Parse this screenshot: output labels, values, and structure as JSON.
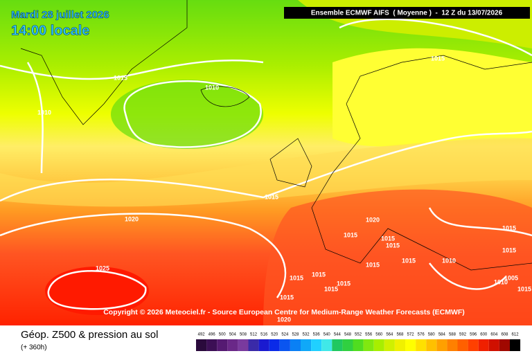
{
  "header": {
    "date": "Mardi 28 juillet 2026",
    "time": "14:00 locale",
    "run": "Ensemble ECMWF AIFS  ( Moyenne )  -  12 Z du 13/07/2026"
  },
  "copyright": "Copyright © 2026 Meteociel.fr - Source European Centre for Medium-Range Weather Forecasts (ECMWF)",
  "isobar_labels": [
    "1015",
    "1010",
    "1010",
    "1015",
    "1015",
    "1020",
    "1025",
    "1020",
    "1015",
    "1015",
    "1015",
    "1015",
    "1015",
    "1015",
    "1015",
    "1015",
    "1015",
    "1015",
    "1015",
    "1010",
    "1010",
    "1005",
    "1015",
    "1015",
    "1020"
  ],
  "footer": {
    "title": "Géop. Z500 & pression au sol",
    "subtitle": "(+ 360h)"
  },
  "scale": {
    "labels": [
      "492",
      "496",
      "500",
      "504",
      "508",
      "512",
      "516",
      "520",
      "524",
      "528",
      "532",
      "536",
      "540",
      "544",
      "548",
      "552",
      "556",
      "560",
      "564",
      "568",
      "572",
      "576",
      "580",
      "584",
      "588",
      "592",
      "596",
      "600",
      "604",
      "608",
      "612"
    ],
    "colors": [
      "#2a0a3c",
      "#3c0f55",
      "#551a72",
      "#6a2888",
      "#7a3a9e",
      "#3a2aa8",
      "#1a1ad0",
      "#0a2ae8",
      "#0a55f0",
      "#0a80f5",
      "#10a8f8",
      "#20d0ff",
      "#40e8e8",
      "#20c860",
      "#30d040",
      "#50dd20",
      "#80e810",
      "#a8ee00",
      "#d0f000",
      "#f0f000",
      "#ffff00",
      "#ffe000",
      "#ffc000",
      "#ffa000",
      "#ff8000",
      "#ff6000",
      "#ff4000",
      "#f02000",
      "#d01000",
      "#a00800",
      "#000000"
    ]
  }
}
